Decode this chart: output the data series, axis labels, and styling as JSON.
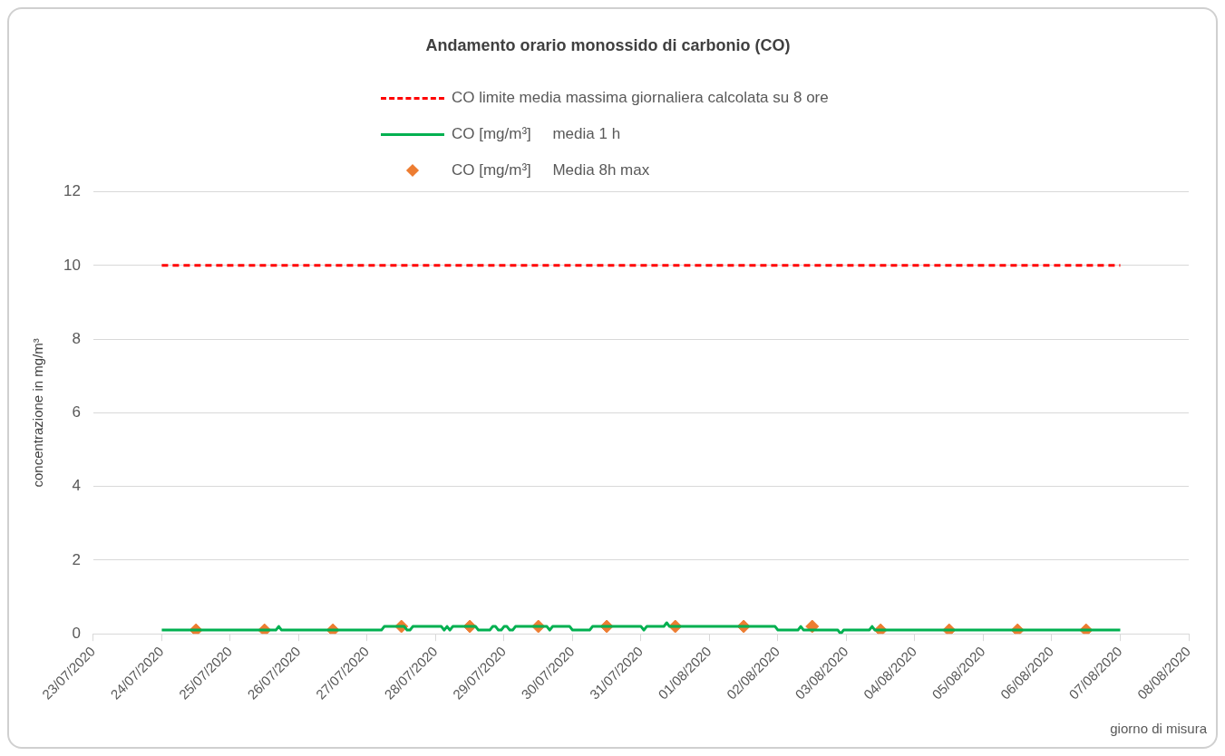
{
  "chart_data": {
    "type": "line",
    "title": "Andamento orario monossido di carbonio (CO)",
    "xlabel": "giorno di misura",
    "ylabel": "concentrazione in mg/m³",
    "legend": "top",
    "grid": "y",
    "ylim": [
      0,
      12
    ],
    "yticks": [
      0,
      2,
      4,
      6,
      8,
      10,
      12
    ],
    "xlim": [
      "2020-07-23",
      "2020-08-08"
    ],
    "xticks": [
      {
        "value": "2020-07-23",
        "label": "23/07/2020"
      },
      {
        "value": "2020-07-24",
        "label": "24/07/2020"
      },
      {
        "value": "2020-07-25",
        "label": "25/07/2020"
      },
      {
        "value": "2020-07-26",
        "label": "26/07/2020"
      },
      {
        "value": "2020-07-27",
        "label": "27/07/2020"
      },
      {
        "value": "2020-07-28",
        "label": "28/07/2020"
      },
      {
        "value": "2020-07-29",
        "label": "29/07/2020"
      },
      {
        "value": "2020-07-30",
        "label": "30/07/2020"
      },
      {
        "value": "2020-07-31",
        "label": "31/07/2020"
      },
      {
        "value": "2020-08-01",
        "label": "01/08/2020"
      },
      {
        "value": "2020-08-02",
        "label": "02/08/2020"
      },
      {
        "value": "2020-08-03",
        "label": "03/08/2020"
      },
      {
        "value": "2020-08-04",
        "label": "04/08/2020"
      },
      {
        "value": "2020-08-05",
        "label": "05/08/2020"
      },
      {
        "value": "2020-08-06",
        "label": "06/08/2020"
      },
      {
        "value": "2020-08-07",
        "label": "07/08/2020"
      },
      {
        "value": "2020-08-08",
        "label": "08/08/2020"
      }
    ],
    "series": [
      {
        "name": "CO limite media massima giornaliera calcolata su 8 ore",
        "type": "line",
        "line_style": "dashed",
        "color": "#ff0000",
        "x": [
          "2020-07-24",
          "2020-08-07"
        ],
        "values": [
          10,
          10
        ]
      },
      {
        "name": "CO [mg/m³]     media 1 h",
        "type": "line",
        "line_style": "solid",
        "color": "#00b050",
        "x": [
          "2020-07-24T00:00",
          "2020-07-25T16:00",
          "2020-07-25T17:00",
          "2020-07-25T18:00",
          "2020-07-27T05:00",
          "2020-07-27T06:00",
          "2020-07-27T13:00",
          "2020-07-27T14:00",
          "2020-07-27T15:00",
          "2020-07-27T16:00",
          "2020-07-28T02:00",
          "2020-07-28T03:00",
          "2020-07-28T04:00",
          "2020-07-28T05:00",
          "2020-07-28T06:00",
          "2020-07-28T14:00",
          "2020-07-28T15:00",
          "2020-07-28T19:00",
          "2020-07-28T20:00",
          "2020-07-28T21:00",
          "2020-07-28T22:00",
          "2020-07-28T23:00",
          "2020-07-29T00:00",
          "2020-07-29T01:00",
          "2020-07-29T02:00",
          "2020-07-29T03:00",
          "2020-07-29T04:00",
          "2020-07-29T15:00",
          "2020-07-29T16:00",
          "2020-07-29T17:00",
          "2020-07-29T23:00",
          "2020-07-30T00:00",
          "2020-07-30T06:00",
          "2020-07-30T07:00",
          "2020-07-31T00:00",
          "2020-07-31T01:00",
          "2020-07-31T02:00",
          "2020-07-31T08:00",
          "2020-07-31T09:00",
          "2020-07-31T10:00",
          "2020-08-01T23:00",
          "2020-08-02T00:00",
          "2020-08-02T07:00",
          "2020-08-02T08:00",
          "2020-08-02T09:00",
          "2020-08-02T21:00",
          "2020-08-02T22:00",
          "2020-08-02T23:00",
          "2020-08-03T08:00",
          "2020-08-03T09:00",
          "2020-08-03T10:00",
          "2020-08-07T00:00"
        ],
        "values": [
          0.1,
          0.1,
          0.2,
          0.1,
          0.1,
          0.2,
          0.2,
          0.1,
          0.1,
          0.2,
          0.2,
          0.1,
          0.2,
          0.1,
          0.2,
          0.2,
          0.1,
          0.1,
          0.2,
          0.2,
          0.1,
          0.1,
          0.2,
          0.2,
          0.1,
          0.1,
          0.2,
          0.2,
          0.1,
          0.2,
          0.2,
          0.1,
          0.1,
          0.2,
          0.2,
          0.1,
          0.2,
          0.2,
          0.3,
          0.2,
          0.2,
          0.1,
          0.1,
          0.2,
          0.1,
          0.1,
          0,
          0.1,
          0.1,
          0.2,
          0.1,
          0.1
        ]
      },
      {
        "name": "CO [mg/m³]     Media 8h max",
        "type": "scatter",
        "marker": "diamond",
        "color": "#ed7d31",
        "x": [
          "2020-07-24T12:00",
          "2020-07-25T12:00",
          "2020-07-26T12:00",
          "2020-07-27T12:00",
          "2020-07-28T12:00",
          "2020-07-29T12:00",
          "2020-07-30T12:00",
          "2020-07-31T12:00",
          "2020-08-01T12:00",
          "2020-08-02T12:00",
          "2020-08-03T12:00",
          "2020-08-04T12:00",
          "2020-08-05T12:00",
          "2020-08-06T12:00"
        ],
        "values": [
          0.1,
          0.1,
          0.1,
          0.2,
          0.2,
          0.2,
          0.2,
          0.2,
          0.2,
          0.2,
          0.1,
          0.1,
          0.1,
          0.1
        ]
      }
    ]
  }
}
